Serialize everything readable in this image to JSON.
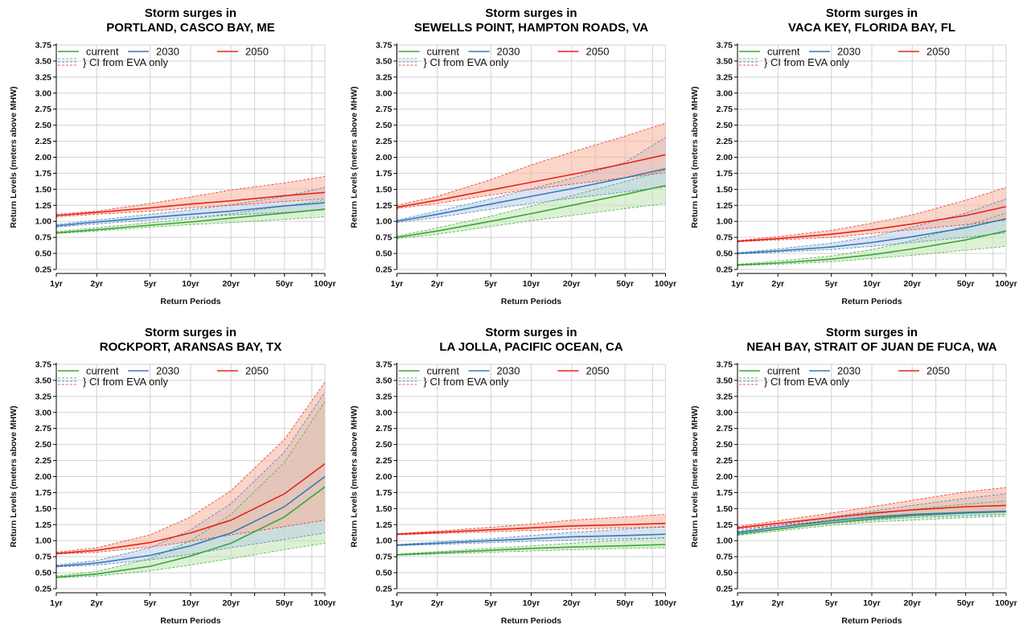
{
  "styles": {
    "colors": {
      "current": "#3aa53a",
      "2030": "#3a78b8",
      "2050": "#e8231b"
    },
    "fills": {
      "current": "#bfe6b0",
      "2030": "#bccde6",
      "2050": "#f8b39b"
    },
    "fill_opacity": {
      "current": 0.55,
      "2030": 0.55,
      "2050": 0.55
    },
    "grid": "#d2d2d2"
  },
  "chart_data": [
    {
      "type": "line",
      "title": "Storm surges in",
      "subtitle": "PORTLAND, CASCO BAY, ME",
      "xlabel": "Return Periods",
      "ylabel": "Return Levels (meters above MHW)",
      "x": [
        1,
        2,
        5,
        10,
        20,
        50,
        100
      ],
      "xtick_labels": [
        "1yr",
        "2yr",
        "5yr",
        "10yr",
        "20yr",
        "50yr",
        "100yr"
      ],
      "ylim": [
        0.25,
        3.75
      ],
      "yticks": [
        "0.25",
        "0.50",
        "0.75",
        "1.00",
        "1.25",
        "1.50",
        "1.75",
        "2.00",
        "2.25",
        "2.50",
        "2.75",
        "3.00",
        "3.25",
        "3.50",
        "3.75"
      ],
      "log_x": true,
      "grid": true,
      "legend": "top-left",
      "series": [
        {
          "name": "current",
          "values": [
            0.82,
            0.87,
            0.94,
            0.99,
            1.05,
            1.13,
            1.19
          ],
          "lower": [
            0.81,
            0.85,
            0.91,
            0.95,
            0.98,
            1.03,
            1.07
          ],
          "upper": [
            0.84,
            0.9,
            0.98,
            1.04,
            1.12,
            1.24,
            1.33
          ]
        },
        {
          "name": "2030",
          "values": [
            0.93,
            0.99,
            1.06,
            1.11,
            1.16,
            1.24,
            1.29
          ],
          "lower": [
            0.91,
            0.96,
            1.02,
            1.06,
            1.1,
            1.14,
            1.18
          ],
          "upper": [
            0.95,
            1.02,
            1.11,
            1.18,
            1.26,
            1.39,
            1.53
          ]
        },
        {
          "name": "2050",
          "values": [
            1.09,
            1.14,
            1.21,
            1.27,
            1.32,
            1.4,
            1.45
          ],
          "lower": [
            1.07,
            1.11,
            1.16,
            1.21,
            1.25,
            1.31,
            1.35
          ],
          "upper": [
            1.11,
            1.16,
            1.28,
            1.38,
            1.49,
            1.6,
            1.7
          ]
        }
      ]
    },
    {
      "type": "line",
      "title": "Storm surges in",
      "subtitle": "SEWELLS POINT, HAMPTON ROADS, VA",
      "xlabel": "Return Periods",
      "ylabel": "Return Levels (meters above MHW)",
      "x": [
        1,
        2,
        5,
        10,
        20,
        50,
        100
      ],
      "xtick_labels": [
        "1yr",
        "2yr",
        "5yr",
        "10yr",
        "20yr",
        "50yr",
        "100yr"
      ],
      "ylim": [
        0.25,
        3.75
      ],
      "yticks": [
        "0.25",
        "0.50",
        "0.75",
        "1.00",
        "1.25",
        "1.50",
        "1.75",
        "2.00",
        "2.25",
        "2.50",
        "2.75",
        "3.00",
        "3.25",
        "3.50",
        "3.75"
      ],
      "log_x": true,
      "grid": true,
      "legend": "top-left",
      "series": [
        {
          "name": "current",
          "values": [
            0.75,
            0.85,
            1.0,
            1.12,
            1.25,
            1.42,
            1.56
          ],
          "lower": [
            0.73,
            0.8,
            0.92,
            1.01,
            1.09,
            1.2,
            1.28
          ],
          "upper": [
            0.77,
            0.9,
            1.08,
            1.24,
            1.4,
            1.62,
            1.8
          ]
        },
        {
          "name": "2030",
          "values": [
            1.0,
            1.11,
            1.27,
            1.39,
            1.51,
            1.68,
            1.82
          ],
          "lower": [
            0.98,
            1.06,
            1.19,
            1.28,
            1.36,
            1.46,
            1.54
          ],
          "upper": [
            1.02,
            1.16,
            1.35,
            1.51,
            1.67,
            1.92,
            2.31
          ]
        },
        {
          "name": "2050",
          "values": [
            1.22,
            1.33,
            1.49,
            1.61,
            1.73,
            1.9,
            2.04
          ],
          "lower": [
            1.2,
            1.28,
            1.41,
            1.5,
            1.58,
            1.68,
            1.76
          ],
          "upper": [
            1.25,
            1.39,
            1.65,
            1.88,
            2.08,
            2.33,
            2.53
          ]
        }
      ]
    },
    {
      "type": "line",
      "title": "Storm surges in",
      "subtitle": "VACA KEY, FLORIDA BAY, FL",
      "xlabel": "Return Periods",
      "ylabel": "Return Levels (meters above MHW)",
      "x": [
        1,
        2,
        5,
        10,
        20,
        50,
        100
      ],
      "xtick_labels": [
        "1yr",
        "2yr",
        "5yr",
        "10yr",
        "20yr",
        "50yr",
        "100yr"
      ],
      "ylim": [
        0.25,
        3.75
      ],
      "yticks": [
        "0.25",
        "0.50",
        "0.75",
        "1.00",
        "1.25",
        "1.50",
        "1.75",
        "2.00",
        "2.25",
        "2.50",
        "2.75",
        "3.00",
        "3.25",
        "3.50",
        "3.75"
      ],
      "log_x": true,
      "grid": true,
      "legend": "top-left",
      "series": [
        {
          "name": "current",
          "values": [
            0.32,
            0.35,
            0.41,
            0.48,
            0.57,
            0.71,
            0.85
          ],
          "lower": [
            0.31,
            0.33,
            0.37,
            0.42,
            0.47,
            0.55,
            0.61
          ],
          "upper": [
            0.33,
            0.38,
            0.46,
            0.56,
            0.7,
            0.93,
            1.13
          ]
        },
        {
          "name": "2030",
          "values": [
            0.5,
            0.54,
            0.6,
            0.67,
            0.76,
            0.9,
            1.04
          ],
          "lower": [
            0.49,
            0.52,
            0.56,
            0.61,
            0.67,
            0.75,
            0.82
          ],
          "upper": [
            0.51,
            0.57,
            0.66,
            0.76,
            0.91,
            1.13,
            1.35
          ]
        },
        {
          "name": "2050",
          "values": [
            0.69,
            0.73,
            0.8,
            0.87,
            0.96,
            1.09,
            1.23
          ],
          "lower": [
            0.68,
            0.71,
            0.75,
            0.81,
            0.87,
            0.95,
            1.02
          ],
          "upper": [
            0.7,
            0.76,
            0.86,
            0.97,
            1.1,
            1.33,
            1.53
          ]
        }
      ]
    },
    {
      "type": "line",
      "title": "Storm surges in",
      "subtitle": "ROCKPORT, ARANSAS BAY, TX",
      "xlabel": "Return Periods",
      "ylabel": "Return Levels (meters above MHW)",
      "x": [
        1,
        2,
        5,
        10,
        20,
        50,
        100
      ],
      "xtick_labels": [
        "1yr",
        "2yr",
        "5yr",
        "10yr",
        "20yr",
        "50yr",
        "100yr"
      ],
      "ylim": [
        0.25,
        3.75
      ],
      "yticks": [
        "0.25",
        "0.50",
        "0.75",
        "1.00",
        "1.25",
        "1.50",
        "1.75",
        "2.00",
        "2.25",
        "2.50",
        "2.75",
        "3.00",
        "3.25",
        "3.50",
        "3.75"
      ],
      "log_x": true,
      "grid": true,
      "legend": "top-left",
      "series": [
        {
          "name": "current",
          "values": [
            0.43,
            0.48,
            0.6,
            0.76,
            0.96,
            1.37,
            1.84
          ],
          "lower": [
            0.42,
            0.45,
            0.53,
            0.62,
            0.72,
            0.86,
            0.96
          ],
          "upper": [
            0.45,
            0.52,
            0.72,
            1.0,
            1.41,
            2.22,
            3.17
          ]
        },
        {
          "name": "2030",
          "values": [
            0.6,
            0.65,
            0.77,
            0.92,
            1.12,
            1.53,
            2.0
          ],
          "lower": [
            0.59,
            0.62,
            0.7,
            0.79,
            0.89,
            1.02,
            1.12
          ],
          "upper": [
            0.62,
            0.69,
            0.89,
            1.17,
            1.58,
            2.38,
            3.32
          ]
        },
        {
          "name": "2050",
          "values": [
            0.8,
            0.85,
            0.97,
            1.12,
            1.32,
            1.73,
            2.2
          ],
          "lower": [
            0.79,
            0.82,
            0.9,
            0.99,
            1.09,
            1.22,
            1.32
          ],
          "upper": [
            0.82,
            0.89,
            1.09,
            1.37,
            1.78,
            2.58,
            3.47
          ]
        }
      ]
    },
    {
      "type": "line",
      "title": "Storm surges in",
      "subtitle": "LA JOLLA, PACIFIC OCEAN, CA",
      "xlabel": "Return Periods",
      "ylabel": "Return Levels (meters above MHW)",
      "x": [
        1,
        2,
        5,
        10,
        20,
        50,
        100
      ],
      "xtick_labels": [
        "1yr",
        "2yr",
        "5yr",
        "10yr",
        "20yr",
        "50yr",
        "100yr"
      ],
      "ylim": [
        0.25,
        3.75
      ],
      "yticks": [
        "0.25",
        "0.50",
        "0.75",
        "1.00",
        "1.25",
        "1.50",
        "1.75",
        "2.00",
        "2.25",
        "2.50",
        "2.75",
        "3.00",
        "3.25",
        "3.50",
        "3.75"
      ],
      "log_x": true,
      "grid": true,
      "legend": "top-left",
      "series": [
        {
          "name": "current",
          "values": [
            0.78,
            0.81,
            0.85,
            0.88,
            0.9,
            0.92,
            0.94
          ],
          "lower": [
            0.77,
            0.79,
            0.82,
            0.84,
            0.86,
            0.88,
            0.89
          ],
          "upper": [
            0.79,
            0.83,
            0.88,
            0.92,
            0.96,
            1.01,
            1.05
          ]
        },
        {
          "name": "2030",
          "values": [
            0.93,
            0.96,
            1.0,
            1.03,
            1.06,
            1.08,
            1.1
          ],
          "lower": [
            0.92,
            0.94,
            0.97,
            0.99,
            1.01,
            1.03,
            1.04
          ],
          "upper": [
            0.94,
            0.98,
            1.03,
            1.08,
            1.13,
            1.18,
            1.22
          ]
        },
        {
          "name": "2050",
          "values": [
            1.1,
            1.13,
            1.17,
            1.2,
            1.23,
            1.25,
            1.27
          ],
          "lower": [
            1.09,
            1.11,
            1.14,
            1.16,
            1.18,
            1.2,
            1.21
          ],
          "upper": [
            1.11,
            1.15,
            1.21,
            1.26,
            1.32,
            1.37,
            1.41
          ]
        }
      ]
    },
    {
      "type": "line",
      "title": "Storm surges in",
      "subtitle": "NEAH BAY, STRAIT OF JUAN DE FUCA, WA",
      "xlabel": "Return Periods",
      "ylabel": "Return Levels (meters above MHW)",
      "x": [
        1,
        2,
        5,
        10,
        20,
        50,
        100
      ],
      "xtick_labels": [
        "1yr",
        "2yr",
        "5yr",
        "10yr",
        "20yr",
        "50yr",
        "100yr"
      ],
      "ylim": [
        0.25,
        3.75
      ],
      "yticks": [
        "0.25",
        "0.50",
        "0.75",
        "1.00",
        "1.25",
        "1.50",
        "1.75",
        "2.00",
        "2.25",
        "2.50",
        "2.75",
        "3.00",
        "3.25",
        "3.50",
        "3.75"
      ],
      "log_x": true,
      "grid": true,
      "legend": "top-left",
      "series": [
        {
          "name": "current",
          "values": [
            1.1,
            1.18,
            1.28,
            1.34,
            1.39,
            1.43,
            1.45
          ],
          "lower": [
            1.08,
            1.15,
            1.24,
            1.29,
            1.32,
            1.36,
            1.38
          ],
          "upper": [
            1.12,
            1.21,
            1.33,
            1.41,
            1.49,
            1.57,
            1.62
          ]
        },
        {
          "name": "2030",
          "values": [
            1.13,
            1.21,
            1.31,
            1.37,
            1.41,
            1.44,
            1.46
          ],
          "lower": [
            1.11,
            1.18,
            1.27,
            1.32,
            1.36,
            1.39,
            1.41
          ],
          "upper": [
            1.15,
            1.24,
            1.37,
            1.46,
            1.55,
            1.66,
            1.73
          ]
        },
        {
          "name": "2050",
          "values": [
            1.2,
            1.27,
            1.36,
            1.43,
            1.48,
            1.53,
            1.55
          ],
          "lower": [
            1.18,
            1.24,
            1.31,
            1.36,
            1.4,
            1.44,
            1.46
          ],
          "upper": [
            1.22,
            1.31,
            1.43,
            1.53,
            1.63,
            1.76,
            1.83
          ]
        }
      ]
    }
  ],
  "legend": {
    "items": [
      {
        "key": "current",
        "label": "current"
      },
      {
        "key": "2030",
        "label": "2030"
      },
      {
        "key": "2050",
        "label": "2050"
      }
    ],
    "ci_label": "} CI from EVA only"
  }
}
